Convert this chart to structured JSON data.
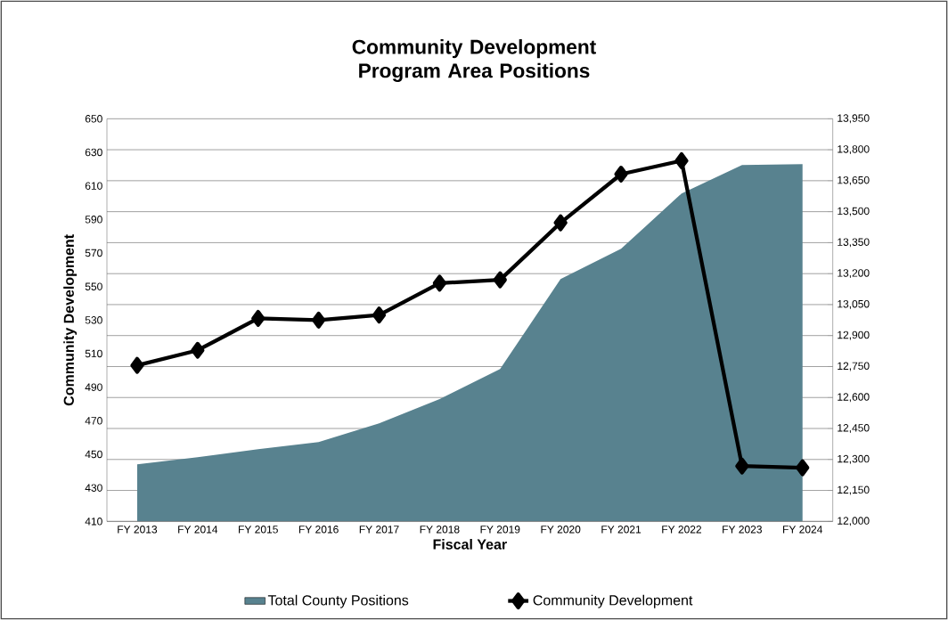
{
  "chart_data": {
    "type": "line",
    "title": "Community Development Program Area Positions",
    "xlabel": "Fiscal Year",
    "ylabel": "Community Development",
    "categories": [
      "FY 2013",
      "FY 2014",
      "FY 2015",
      "FY 2016",
      "FY 2017",
      "FY 2018",
      "FY 2019",
      "FY 2020",
      "FY 2021",
      "FY 2022",
      "FY 2023",
      "FY 2024"
    ],
    "series": [
      {
        "name": "Total County Positions",
        "type": "area",
        "axis": "y2",
        "color": "#58828f",
        "values": [
          12276,
          12311,
          12350,
          12384,
          12475,
          12592,
          12738,
          13174,
          13320,
          13588,
          13726,
          13730
        ]
      },
      {
        "name": "Community Development",
        "color": "#000000",
        "marker": "diamond",
        "line_style": "solid",
        "values": [
          503,
          512,
          531,
          530,
          533,
          552,
          554,
          588,
          617,
          625,
          443,
          442
        ]
      }
    ],
    "ylim": [
      410,
      650
    ],
    "yticks": [
      410,
      430,
      450,
      470,
      490,
      510,
      530,
      550,
      570,
      590,
      610,
      630,
      650
    ],
    "y2lim": [
      12000,
      13950
    ],
    "y2ticks": [
      {
        "value": 12000,
        "label": "12,000"
      },
      {
        "value": 12150,
        "label": "12,150"
      },
      {
        "value": 12300,
        "label": "12,300"
      },
      {
        "value": 12450,
        "label": "12,450"
      },
      {
        "value": 12600,
        "label": "12,600"
      },
      {
        "value": 12750,
        "label": "12,750"
      },
      {
        "value": 12900,
        "label": "12,900"
      },
      {
        "value": 13050,
        "label": "13,050"
      },
      {
        "value": 13200,
        "label": "13,200"
      },
      {
        "value": 13350,
        "label": "13,350"
      },
      {
        "value": 13500,
        "label": "13,500"
      },
      {
        "value": 13650,
        "label": "13,650"
      },
      {
        "value": 13800,
        "label": "13,800"
      },
      {
        "value": 13950,
        "label": "13,950"
      }
    ],
    "grid": "y",
    "legend": "bottom"
  }
}
